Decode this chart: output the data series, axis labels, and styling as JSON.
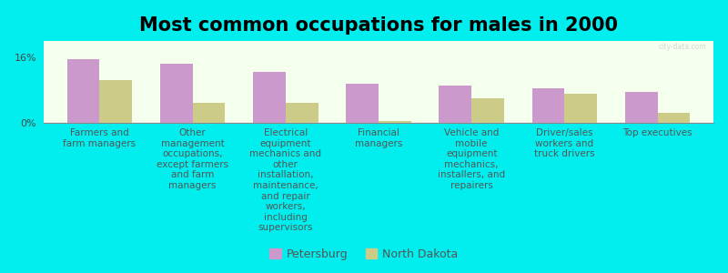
{
  "title": "Most common occupations for males in 2000",
  "background_color": "#00EEEE",
  "bar_bg_color": "#F5FFEE",
  "categories": [
    "Farmers and\nfarm managers",
    "Other\nmanagement\noccupations,\nexcept farmers\nand farm\nmanagers",
    "Electrical\nequipment\nmechanics and\nother\ninstallation,\nmaintenance,\nand repair\nworkers,\nincluding\nsupervisors",
    "Financial\nmanagers",
    "Vehicle and\nmobile\nequipment\nmechanics,\ninstallers, and\nrepairers",
    "Driver/sales\nworkers and\ntruck drivers",
    "Top executives"
  ],
  "petersburg_values": [
    15.5,
    14.5,
    12.5,
    9.5,
    9.0,
    8.5,
    7.5
  ],
  "north_dakota_values": [
    10.5,
    5.0,
    5.0,
    0.5,
    6.0,
    7.0,
    2.5
  ],
  "petersburg_color": "#CC99CC",
  "north_dakota_color": "#CCCC88",
  "ylabel_ticks": [
    "0%",
    "16%"
  ],
  "yticks": [
    0,
    16
  ],
  "ylim": [
    0,
    20
  ],
  "legend_labels": [
    "Petersburg",
    "North Dakota"
  ],
  "title_fontsize": 15,
  "label_fontsize": 7.5,
  "tick_fontsize": 8,
  "watermark": "city-data.com"
}
